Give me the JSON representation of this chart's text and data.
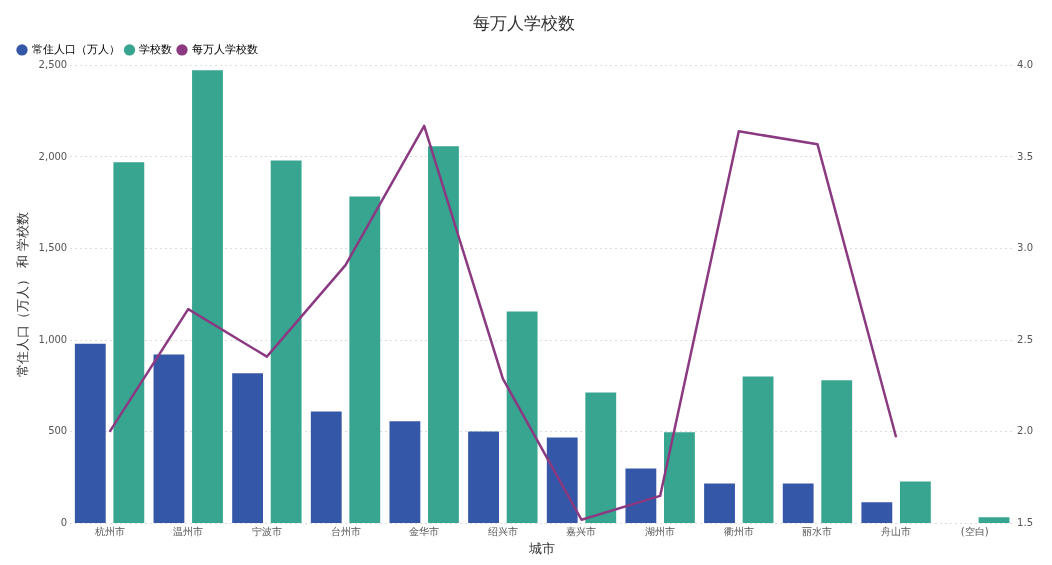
{
  "chart_data": {
    "type": "bar",
    "title": "每万人学校数",
    "xlabel": "城市",
    "ylabel": "常住人口（万人） 和 学校数",
    "categories": [
      "杭州市",
      "温州市",
      "宁波市",
      "台州市",
      "金华市",
      "绍兴市",
      "嘉兴市",
      "湖州市",
      "衢州市",
      "丽水市",
      "舟山市",
      "(空白)"
    ],
    "series": [
      {
        "name": "常住人口（万人）",
        "color": "#3457a8",
        "values": [
          980,
          922,
          819,
          611,
          557,
          502,
          469,
          300,
          218,
          218,
          115,
          null
        ]
      },
      {
        "name": "学校数",
        "color": "#37a58f",
        "values": [
          1971,
          2473,
          1981,
          1785,
          2058,
          1157,
          715,
          497,
          802,
          781,
          229,
          33
        ]
      },
      {
        "name": "每万人学校数",
        "type": "line",
        "axis": "y2",
        "color": "#8b3a82",
        "values": [
          2.0,
          2.67,
          2.41,
          2.91,
          3.67,
          2.29,
          1.52,
          1.65,
          3.64,
          3.57,
          1.97,
          null
        ]
      }
    ],
    "ylim": [
      0,
      2500
    ],
    "yticks": [
      0,
      500,
      {
        "value": 1000,
        "label": "1,000"
      },
      {
        "value": 1500,
        "label": "1,500"
      },
      {
        "value": 2000,
        "label": "2,000"
      },
      {
        "value": 2500,
        "label": "2,500"
      }
    ],
    "y2lim": [
      1.5,
      4.0
    ],
    "y2ticks": [
      1.5,
      {
        "value": 2,
        "label": "2.0"
      },
      2.5,
      {
        "value": 3,
        "label": "3.0"
      },
      3.5,
      {
        "value": 4,
        "label": "4.0"
      }
    ],
    "grid": "y",
    "legend": "top left",
    "marker": "none",
    "line_style": "solid"
  }
}
